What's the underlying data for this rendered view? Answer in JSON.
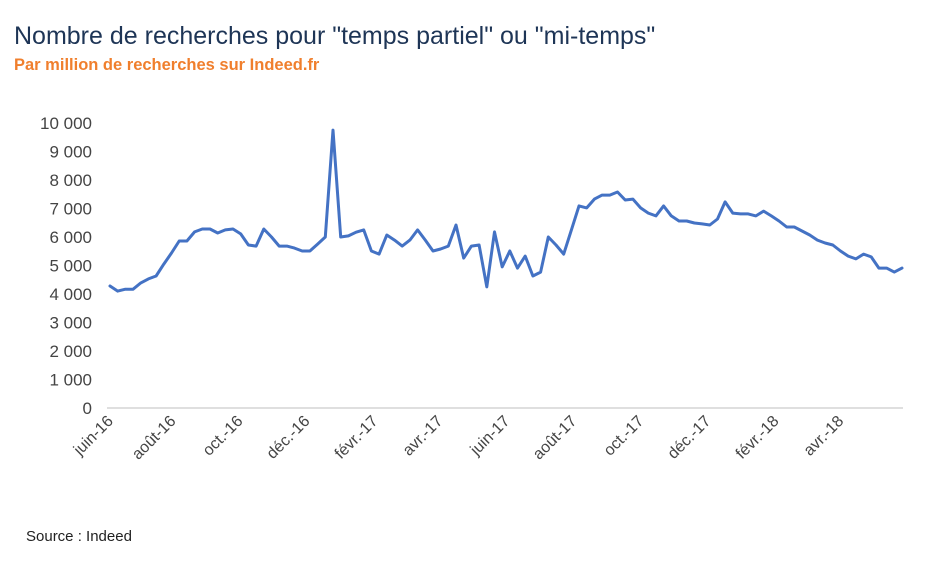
{
  "chart_data": {
    "type": "line",
    "title": "Nombre de recherches pour \"temps partiel\" ou \"mi-temps\"",
    "subtitle": "Par million de recherches sur Indeed.fr",
    "source": "Source : Indeed",
    "xlabel": "",
    "ylabel": "",
    "ylim": [
      0,
      10000
    ],
    "yticks": [
      0,
      1000,
      2000,
      3000,
      4000,
      5000,
      6000,
      7000,
      8000,
      9000,
      10000
    ],
    "ytick_labels": [
      "0",
      "1 000",
      "2 000",
      "3 000",
      "4 000",
      "5 000",
      "6 000",
      "7 000",
      "8 000",
      "9 000",
      "10 000"
    ],
    "xticks": [
      "2016-06-01",
      "2016-08-01",
      "2016-10-01",
      "2016-12-01",
      "2017-02-01",
      "2017-04-01",
      "2017-06-01",
      "2017-08-01",
      "2017-10-01",
      "2017-12-01",
      "2018-02-01",
      "2018-04-01"
    ],
    "xtick_labels": [
      "juin-16",
      "août-16",
      "oct.-16",
      "déc.-16",
      "févr.-17",
      "avr.-17",
      "juin-17",
      "août-17",
      "oct.-17",
      "déc.-17",
      "févr.-18",
      "avr.-18"
    ],
    "grid": false,
    "legend": "none",
    "color": "#4472c4",
    "x": [
      "2016-06-05",
      "2016-06-12",
      "2016-06-19",
      "2016-06-26",
      "2016-07-03",
      "2016-07-10",
      "2016-07-17",
      "2016-07-24",
      "2016-07-31",
      "2016-08-07",
      "2016-08-14",
      "2016-08-21",
      "2016-08-28",
      "2016-09-04",
      "2016-09-11",
      "2016-09-18",
      "2016-09-25",
      "2016-10-02",
      "2016-10-09",
      "2016-10-16",
      "2016-10-23",
      "2016-10-30",
      "2016-11-06",
      "2016-11-13",
      "2016-11-20",
      "2016-11-27",
      "2016-12-04",
      "2016-12-11",
      "2016-12-18",
      "2016-12-25",
      "2017-01-01",
      "2017-01-08",
      "2017-01-15",
      "2017-01-22",
      "2017-01-29",
      "2017-02-05",
      "2017-02-12",
      "2017-02-19",
      "2017-02-26",
      "2017-03-05",
      "2017-03-12",
      "2017-03-19",
      "2017-03-26",
      "2017-04-02",
      "2017-04-09",
      "2017-04-16",
      "2017-04-23",
      "2017-04-30",
      "2017-05-07",
      "2017-05-14",
      "2017-05-21",
      "2017-05-28",
      "2017-06-04",
      "2017-06-11",
      "2017-06-18",
      "2017-06-25",
      "2017-07-02",
      "2017-07-09",
      "2017-07-16",
      "2017-07-23",
      "2017-07-30",
      "2017-08-06",
      "2017-08-13",
      "2017-08-20",
      "2017-08-27",
      "2017-09-03",
      "2017-09-10",
      "2017-09-17",
      "2017-09-24",
      "2017-10-01",
      "2017-10-08",
      "2017-10-15",
      "2017-10-22",
      "2017-10-29",
      "2017-11-05",
      "2017-11-12",
      "2017-11-19",
      "2017-11-26",
      "2017-12-03",
      "2017-12-10",
      "2017-12-17",
      "2017-12-24",
      "2017-12-31",
      "2018-01-07",
      "2018-01-14",
      "2018-01-21",
      "2018-01-28",
      "2018-02-04",
      "2018-02-11",
      "2018-02-18",
      "2018-02-25",
      "2018-03-04",
      "2018-03-11",
      "2018-03-18",
      "2018-03-25",
      "2018-04-01",
      "2018-04-08",
      "2018-04-15",
      "2018-04-22",
      "2018-04-29",
      "2018-05-06",
      "2018-05-13",
      "2018-05-20",
      "2018-05-27"
    ],
    "values": [
      4280,
      4100,
      4170,
      4170,
      4390,
      4530,
      4630,
      5050,
      5440,
      5860,
      5860,
      6180,
      6280,
      6280,
      6140,
      6250,
      6280,
      6110,
      5720,
      5680,
      6280,
      6000,
      5680,
      5680,
      5610,
      5510,
      5510,
      5750,
      6000,
      9750,
      6000,
      6040,
      6170,
      6250,
      5510,
      5400,
      6070,
      5890,
      5680,
      5890,
      6250,
      5890,
      5510,
      5580,
      5680,
      6420,
      5260,
      5680,
      5720,
      4250,
      6180,
      4950,
      5510,
      4910,
      5330,
      4630,
      4770,
      6000,
      5720,
      5400,
      6250,
      7090,
      7020,
      7330,
      7470,
      7470,
      7580,
      7300,
      7330,
      7020,
      6840,
      6740,
      7090,
      6740,
      6560,
      6560,
      6490,
      6460,
      6420,
      6630,
      7230,
      6840,
      6810,
      6810,
      6740,
      6910,
      6740,
      6560,
      6350,
      6350,
      6210,
      6070,
      5890,
      5790,
      5720,
      5510,
      5330,
      5230,
      5400,
      5300,
      4910,
      4910,
      4770,
      4910
    ]
  }
}
